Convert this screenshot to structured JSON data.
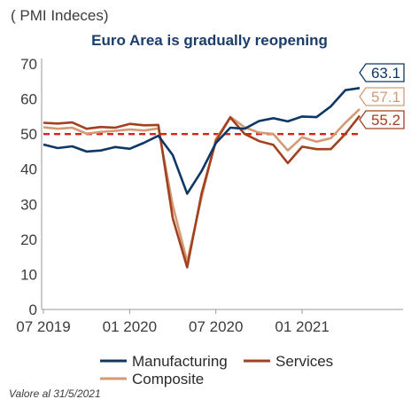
{
  "header": {
    "unit_label": "( PMI Indeces)"
  },
  "footer": {
    "source_note": "Valore al 31/5/2021"
  },
  "colors": {
    "manufacturing": "#0e3766",
    "services": "#a2411f",
    "composite": "#d49a74",
    "reference": "#dd1f1f",
    "axis": "#9a9a9a"
  },
  "chart_data": {
    "type": "line",
    "title": "Euro Area is gradually reopening",
    "xlabel": "",
    "ylabel": "",
    "ylim": [
      0,
      70
    ],
    "yticks": [
      0,
      10,
      20,
      30,
      40,
      50,
      60,
      70
    ],
    "x": [
      "2019-07",
      "2019-08",
      "2019-09",
      "2019-10",
      "2019-11",
      "2019-12",
      "2020-01",
      "2020-02",
      "2020-03",
      "2020-04",
      "2020-05",
      "2020-06",
      "2020-07",
      "2020-08",
      "2020-09",
      "2020-10",
      "2020-11",
      "2020-12",
      "2021-01",
      "2021-02",
      "2021-03",
      "2021-04",
      "2021-05"
    ],
    "x_ticks": [
      {
        "x": "2019-07",
        "label": "07 2019"
      },
      {
        "x": "2020-01",
        "label": "01 2020"
      },
      {
        "x": "2020-07",
        "label": "07 2020"
      },
      {
        "x": "2021-01",
        "label": "01 2021"
      }
    ],
    "reference_line": {
      "y": 50,
      "style": "dashed"
    },
    "legend_position": "bottom",
    "series": [
      {
        "name": "Manufacturing",
        "color": "#0e3766",
        "end_label": "63.1",
        "values": [
          47.0,
          46.0,
          46.5,
          45.0,
          45.3,
          46.3,
          45.8,
          47.5,
          49.5,
          44.0,
          33.0,
          39.4,
          47.4,
          51.8,
          51.5,
          53.7,
          54.5,
          53.6,
          55.0,
          54.8,
          57.9,
          62.5,
          63.1
        ]
      },
      {
        "name": "Services",
        "color": "#a2411f",
        "end_label": "55.2",
        "values": [
          53.2,
          53.0,
          53.3,
          51.5,
          52.0,
          51.8,
          52.9,
          52.5,
          52.6,
          26.0,
          12.0,
          33.0,
          48.0,
          54.7,
          50.0,
          48.0,
          46.9,
          41.7,
          46.4,
          45.7,
          45.7,
          50.0,
          55.2
        ]
      },
      {
        "name": "Composite",
        "color": "#d49a74",
        "end_label": "57.1",
        "values": [
          51.9,
          51.5,
          51.8,
          50.1,
          50.6,
          50.9,
          51.3,
          51.0,
          51.6,
          29.7,
          13.6,
          31.9,
          48.5,
          54.9,
          51.9,
          50.4,
          50.0,
          45.3,
          49.1,
          47.8,
          48.8,
          53.2,
          57.1
        ]
      }
    ]
  }
}
